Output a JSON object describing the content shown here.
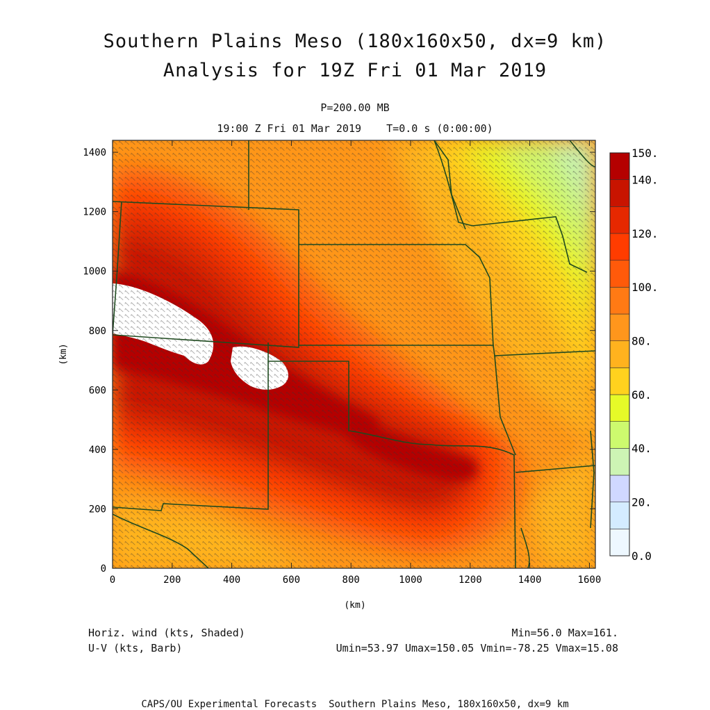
{
  "title_line1": "Southern Plains Meso (180x160x50, dx=9 km)",
  "title_line2": "Analysis for 19Z Fri 01 Mar 2019",
  "level": "P=200.00 MB",
  "valid_time": "19:00 Z Fri 01 Mar 2019    T=0.0 s (0:00:00)",
  "axes": {
    "x_label": "(km)",
    "y_label": "(km)",
    "x_ticks": [
      "0",
      "200",
      "400",
      "600",
      "800",
      "1000",
      "1200",
      "1400",
      "1600"
    ],
    "y_ticks": [
      "0",
      "200",
      "400",
      "600",
      "800",
      "1000",
      "1200",
      "1400"
    ]
  },
  "colorbar": {
    "labels": [
      "0.0",
      "20.",
      "40.",
      "60.",
      "80.",
      "100.",
      "120.",
      "140.",
      "150."
    ],
    "colors": [
      "#eef8ff",
      "#d4ecff",
      "#d0d8ff",
      "#cdf4b4",
      "#cdfa6e",
      "#e6fa28",
      "#ffd21e",
      "#ffb21e",
      "#ff961c",
      "#ff7a14",
      "#ff5a0a",
      "#ff3c00",
      "#e62800",
      "#c81400",
      "#b40000"
    ]
  },
  "legend": {
    "shaded": "Horiz. wind (kts, Shaded)",
    "barb": "U-V (kts, Barb)",
    "minmax": "Min=56.0 Max=161.",
    "uv_stats": "Umin=53.97 Umax=150.05 Vmin=-78.25 Vmax=15.08"
  },
  "credit": "CAPS/OU Experimental Forecasts  Southern Plains Meso, 180x160x50, dx=9 km"
}
